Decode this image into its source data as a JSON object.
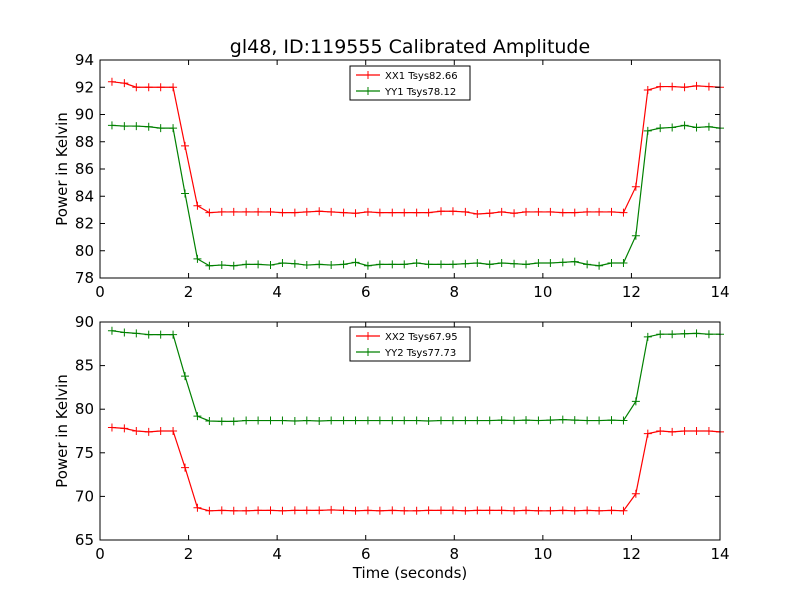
{
  "title": "gl48, ID:119555 Calibrated Amplitude",
  "chart_data": [
    {
      "type": "line",
      "ylabel": "Power in Kelvin",
      "xlabel": "",
      "xlim": [
        0,
        14
      ],
      "ylim": [
        78,
        94
      ],
      "xticks": [
        0,
        2,
        4,
        6,
        8,
        10,
        12,
        14
      ],
      "yticks": [
        78,
        80,
        82,
        84,
        86,
        88,
        90,
        92,
        94
      ],
      "grid": false,
      "legend_position": "top-center",
      "x": [
        0.27,
        0.55,
        0.82,
        1.1,
        1.37,
        1.65,
        1.92,
        2.2,
        2.47,
        2.75,
        3.02,
        3.3,
        3.57,
        3.85,
        4.12,
        4.4,
        4.67,
        4.95,
        5.22,
        5.5,
        5.77,
        6.05,
        6.32,
        6.6,
        6.87,
        7.15,
        7.42,
        7.7,
        7.97,
        8.25,
        8.52,
        8.8,
        9.07,
        9.35,
        9.62,
        9.9,
        10.17,
        10.45,
        10.72,
        11.0,
        11.27,
        11.55,
        11.82,
        12.1,
        12.37,
        12.65,
        12.92,
        13.2,
        13.47,
        13.75,
        14.0
      ],
      "series": [
        {
          "name": "XX1 Tsys82.66",
          "color": "#ff0000",
          "values": [
            92.4,
            92.3,
            92.0,
            92.0,
            92.0,
            92.0,
            87.7,
            83.3,
            82.8,
            82.85,
            82.85,
            82.85,
            82.85,
            82.85,
            82.8,
            82.8,
            82.85,
            82.9,
            82.85,
            82.8,
            82.75,
            82.85,
            82.8,
            82.8,
            82.8,
            82.8,
            82.8,
            82.9,
            82.9,
            82.85,
            82.7,
            82.75,
            82.85,
            82.75,
            82.85,
            82.85,
            82.85,
            82.8,
            82.8,
            82.85,
            82.85,
            82.85,
            82.8,
            84.7,
            91.8,
            92.05,
            92.05,
            92.0,
            92.1,
            92.05,
            92.0
          ]
        },
        {
          "name": "YY1 Tsys78.12",
          "color": "#008000",
          "values": [
            89.2,
            89.15,
            89.15,
            89.1,
            89.0,
            89.0,
            84.2,
            79.4,
            78.9,
            78.95,
            78.9,
            79.0,
            79.0,
            78.95,
            79.1,
            79.05,
            78.95,
            79.0,
            78.95,
            79.0,
            79.15,
            78.9,
            79.0,
            79.0,
            79.0,
            79.1,
            79.0,
            79.0,
            79.0,
            79.05,
            79.1,
            79.0,
            79.1,
            79.05,
            79.0,
            79.1,
            79.1,
            79.15,
            79.2,
            79.0,
            78.9,
            79.1,
            79.1,
            81.1,
            88.8,
            89.0,
            89.05,
            89.2,
            89.05,
            89.1,
            89.0
          ]
        }
      ]
    },
    {
      "type": "line",
      "ylabel": "Power in Kelvin",
      "xlabel": "Time (seconds)",
      "xlim": [
        0,
        14
      ],
      "ylim": [
        65,
        90
      ],
      "xticks": [
        0,
        2,
        4,
        6,
        8,
        10,
        12,
        14
      ],
      "yticks": [
        65,
        70,
        75,
        80,
        85,
        90
      ],
      "grid": false,
      "legend_position": "top-center",
      "x": [
        0.27,
        0.55,
        0.82,
        1.1,
        1.37,
        1.65,
        1.92,
        2.2,
        2.47,
        2.75,
        3.02,
        3.3,
        3.57,
        3.85,
        4.12,
        4.4,
        4.67,
        4.95,
        5.22,
        5.5,
        5.77,
        6.05,
        6.32,
        6.6,
        6.87,
        7.15,
        7.42,
        7.7,
        7.97,
        8.25,
        8.52,
        8.8,
        9.07,
        9.35,
        9.62,
        9.9,
        10.17,
        10.45,
        10.72,
        11.0,
        11.27,
        11.55,
        11.82,
        12.1,
        12.37,
        12.65,
        12.92,
        13.2,
        13.47,
        13.75,
        14.0
      ],
      "series": [
        {
          "name": "XX2 Tsys67.95",
          "color": "#ff0000",
          "values": [
            77.9,
            77.8,
            77.5,
            77.4,
            77.5,
            77.5,
            73.3,
            68.7,
            68.35,
            68.4,
            68.35,
            68.35,
            68.4,
            68.4,
            68.35,
            68.4,
            68.4,
            68.4,
            68.45,
            68.4,
            68.35,
            68.4,
            68.35,
            68.4,
            68.35,
            68.35,
            68.4,
            68.4,
            68.4,
            68.35,
            68.4,
            68.4,
            68.4,
            68.35,
            68.4,
            68.35,
            68.35,
            68.4,
            68.35,
            68.4,
            68.35,
            68.4,
            68.35,
            70.3,
            77.2,
            77.5,
            77.4,
            77.5,
            77.5,
            77.5,
            77.4
          ]
        },
        {
          "name": "YY2 Tsys77.73",
          "color": "#008000",
          "values": [
            89.0,
            88.8,
            88.7,
            88.55,
            88.55,
            88.55,
            83.8,
            79.2,
            78.65,
            78.6,
            78.6,
            78.7,
            78.7,
            78.7,
            78.7,
            78.65,
            78.7,
            78.65,
            78.7,
            78.7,
            78.7,
            78.7,
            78.7,
            78.7,
            78.7,
            78.7,
            78.65,
            78.7,
            78.7,
            78.7,
            78.7,
            78.7,
            78.75,
            78.7,
            78.75,
            78.7,
            78.75,
            78.8,
            78.75,
            78.7,
            78.7,
            78.75,
            78.7,
            80.9,
            88.3,
            88.6,
            88.6,
            88.65,
            88.7,
            88.6,
            88.6
          ]
        }
      ]
    }
  ]
}
